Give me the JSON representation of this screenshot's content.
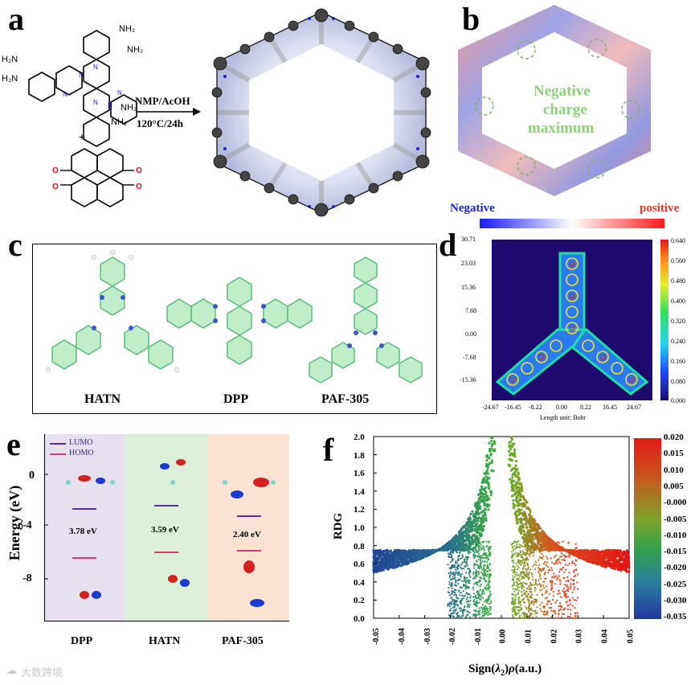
{
  "panel_labels": {
    "a": "a",
    "b": "b",
    "c": "c",
    "d": "d",
    "e": "e",
    "f": "f"
  },
  "panel_a": {
    "nh2": "NH₂",
    "h2n": "H₂N",
    "plus": "+",
    "conditions_1": "NMP/AcOH",
    "conditions_2": "120°C/24h"
  },
  "panel_b": {
    "center_1": "Negative",
    "center_2": "charge",
    "center_3": "maximum",
    "scale_negative": "Negative",
    "scale_positive": "positive",
    "colors": {
      "negative": "#1a22d6",
      "positive": "#e23a2c",
      "center_text": "#8fd07a"
    }
  },
  "panel_c": {
    "labels": [
      "HATN",
      "DPP",
      "PAF-305"
    ]
  },
  "panel_d": {
    "yticks": [
      "30.71",
      "23.03",
      "15.36",
      "7.68",
      "0.00",
      "-7.68",
      "-15.36"
    ],
    "xticks": [
      "-24.67",
      "-16.45",
      "-8.22",
      "0.00",
      "8.22",
      "16.45",
      "24.67"
    ],
    "xlabel": "Length unit: Bohr",
    "cbar_ticks": [
      "0.640",
      "0.560",
      "0.480",
      "0.400",
      "0.320",
      "0.240",
      "0.160",
      "0.080",
      "0.000"
    ]
  },
  "panel_e": {
    "legend_lumo": "LUMO",
    "legend_homo": "HOMO",
    "ylabel": "Energy (eV)",
    "yticks": [
      "0",
      "-4",
      "-8"
    ],
    "columns": [
      {
        "name": "DPP",
        "gap": "3.78 eV",
        "bg": "#e6e0ef"
      },
      {
        "name": "HATN",
        "gap": "3.59 eV",
        "bg": "#dcefd8"
      },
      {
        "name": "PAF-305",
        "gap": "2.40 eV",
        "bg": "#fbe2d2"
      }
    ],
    "colors": {
      "lumo": "#5a2ea6",
      "homo": "#e0357a"
    }
  },
  "chart_data": {
    "type": "scatter",
    "xlabel": "Sign(λ2)ρ(a.u.)",
    "ylabel": "RDG",
    "xlim": [
      -0.05,
      0.05
    ],
    "ylim": [
      0.0,
      2.0
    ],
    "xticks": [
      "-0.05",
      "-0.04",
      "-0.03",
      "-0.02",
      "-0.01",
      "0.00",
      "0.01",
      "0.02",
      "0.03",
      "0.04",
      "0.05"
    ],
    "yticks": [
      "2.0",
      "1.8",
      "1.6",
      "1.4",
      "1.2",
      "1.0",
      "0.8",
      "0.6",
      "0.4",
      "0.2",
      "0.0"
    ],
    "colorbar_ticks": [
      "0.020",
      "0.015",
      "0.010",
      "0.005",
      "-0.000",
      "-0.005",
      "-0.010",
      "-0.015",
      "-0.020",
      "-0.025",
      "-0.030",
      "-0.035"
    ]
  },
  "watermark": "大数跨境"
}
